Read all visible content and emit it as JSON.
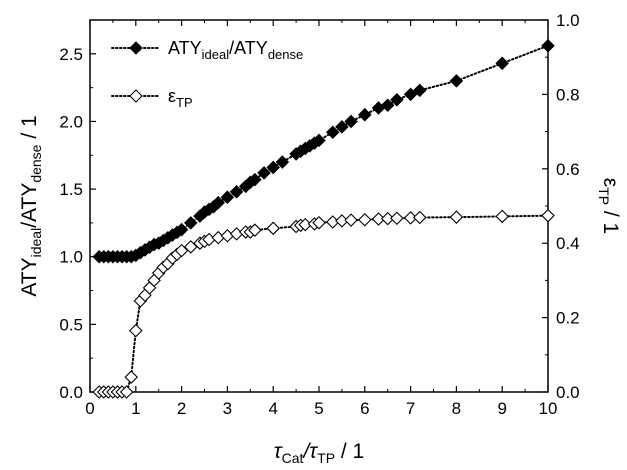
{
  "chart_data": {
    "type": "scatter",
    "xlim": [
      0,
      10
    ],
    "ylim_left": [
      0,
      2.75
    ],
    "ylim_right": [
      0,
      1.0
    ],
    "x_ticks": [
      {
        "v": 0,
        "label": "0"
      },
      {
        "v": 1,
        "label": "1"
      },
      {
        "v": 2,
        "label": "2"
      },
      {
        "v": 3,
        "label": "3"
      },
      {
        "v": 4,
        "label": "4"
      },
      {
        "v": 5,
        "label": "5"
      },
      {
        "v": 6,
        "label": "6"
      },
      {
        "v": 7,
        "label": "7"
      },
      {
        "v": 8,
        "label": "8"
      },
      {
        "v": 9,
        "label": "9"
      },
      {
        "v": 10,
        "label": "10"
      }
    ],
    "left_ticks": [
      {
        "v": 0.0,
        "label": "0.0"
      },
      {
        "v": 0.5,
        "label": "0.5"
      },
      {
        "v": 1.0,
        "label": "1.0"
      },
      {
        "v": 1.5,
        "label": "1.5"
      },
      {
        "v": 2.0,
        "label": "2.0"
      },
      {
        "v": 2.5,
        "label": "2.5"
      }
    ],
    "right_ticks": [
      {
        "v": 0.0,
        "label": "0.0"
      },
      {
        "v": 0.2,
        "label": "0.2"
      },
      {
        "v": 0.4,
        "label": "0.4"
      },
      {
        "v": 0.6,
        "label": "0.6"
      },
      {
        "v": 0.8,
        "label": "0.8"
      },
      {
        "v": 1.0,
        "label": "1.0"
      }
    ],
    "xlabel": {
      "main1": "τ",
      "sub1": "Cat",
      "main2": "/τ",
      "sub2": "TP",
      "main3": " / 1"
    },
    "ylabel_left": {
      "main1": "ATY",
      "sub1": "ideal",
      "main2": "/ATY",
      "sub2": "dense",
      "main3": " / 1"
    },
    "ylabel_right": {
      "main1": "ε",
      "sub1": "TP",
      "main3": " / 1"
    },
    "legend_placement": "top-left",
    "series": [
      {
        "legend": {
          "main1": "ATY",
          "sub1": "ideal",
          "main2": "/ATY",
          "sub2": "dense"
        },
        "axis": "left",
        "marker": "filled-diamond",
        "line": "dotted",
        "x": [
          0.2,
          0.3,
          0.4,
          0.5,
          0.6,
          0.7,
          0.8,
          0.9,
          1.0,
          1.1,
          1.2,
          1.3,
          1.4,
          1.5,
          1.6,
          1.7,
          1.8,
          1.9,
          2.0,
          2.2,
          2.4,
          2.5,
          2.6,
          2.7,
          2.8,
          3.0,
          3.2,
          3.4,
          3.5,
          3.6,
          3.8,
          4.0,
          4.2,
          4.5,
          4.6,
          4.7,
          4.8,
          4.9,
          5.0,
          5.3,
          5.5,
          5.7,
          6.0,
          6.3,
          6.5,
          6.7,
          7.0,
          7.2,
          8.0,
          9.0,
          10.0
        ],
        "y": [
          1.0,
          1.0,
          1.0,
          1.0,
          1.0,
          1.0,
          1.0,
          1.0,
          1.01,
          1.03,
          1.05,
          1.07,
          1.09,
          1.1,
          1.12,
          1.14,
          1.16,
          1.18,
          1.2,
          1.25,
          1.3,
          1.33,
          1.35,
          1.37,
          1.4,
          1.44,
          1.48,
          1.52,
          1.55,
          1.57,
          1.62,
          1.66,
          1.7,
          1.76,
          1.78,
          1.8,
          1.82,
          1.84,
          1.86,
          1.92,
          1.96,
          2.0,
          2.05,
          2.1,
          2.12,
          2.16,
          2.2,
          2.23,
          2.3,
          2.43,
          2.56
        ]
      },
      {
        "legend": {
          "main1": "ε",
          "sub1": "TP"
        },
        "axis": "right",
        "marker": "open-diamond",
        "line": "dotted",
        "x": [
          0.2,
          0.3,
          0.4,
          0.5,
          0.6,
          0.7,
          0.8,
          0.9,
          1.0,
          1.1,
          1.2,
          1.3,
          1.4,
          1.5,
          1.6,
          1.7,
          1.8,
          1.9,
          2.0,
          2.2,
          2.4,
          2.5,
          2.6,
          2.8,
          3.0,
          3.2,
          3.4,
          3.5,
          3.6,
          4.0,
          4.5,
          4.6,
          4.7,
          4.9,
          5.0,
          5.3,
          5.5,
          5.7,
          6.0,
          6.3,
          6.5,
          6.7,
          7.0,
          7.2,
          8.0,
          9.0,
          10.0
        ],
        "y": [
          0.0,
          0.0,
          0.0,
          0.0,
          0.0,
          0.0,
          0.0,
          0.04,
          0.165,
          0.245,
          0.26,
          0.28,
          0.3,
          0.32,
          0.335,
          0.345,
          0.36,
          0.37,
          0.38,
          0.39,
          0.4,
          0.405,
          0.41,
          0.415,
          0.42,
          0.425,
          0.43,
          0.43,
          0.435,
          0.44,
          0.445,
          0.448,
          0.45,
          0.452,
          0.455,
          0.457,
          0.46,
          0.462,
          0.463,
          0.465,
          0.466,
          0.467,
          0.468,
          0.469,
          0.47,
          0.472,
          0.474
        ]
      }
    ]
  }
}
